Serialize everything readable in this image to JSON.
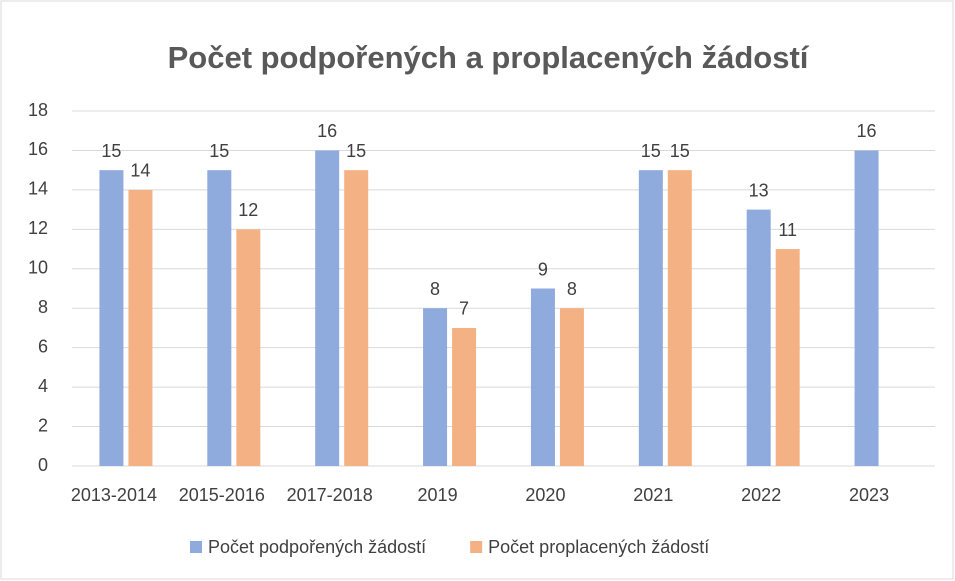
{
  "chart_data": {
    "type": "bar",
    "title": "Počet podpořených a proplacených žádostí",
    "categories": [
      "2013-2014",
      "2015-2016",
      "2017-2018",
      "2019",
      "2020",
      "2021",
      "2022",
      "2023"
    ],
    "series": [
      {
        "name": "Počet podpořených žádostí",
        "color": "#8faadc",
        "values": [
          15,
          15,
          16,
          8,
          9,
          15,
          13,
          16
        ]
      },
      {
        "name": "Počet proplacených žádostí",
        "color": "#f4b183",
        "values": [
          14,
          12,
          15,
          7,
          8,
          15,
          11,
          null
        ]
      }
    ],
    "ylim": [
      0,
      18
    ],
    "yticks": [
      0,
      2,
      4,
      6,
      8,
      10,
      12,
      14,
      16,
      18
    ],
    "grid": true,
    "legend": "bottom"
  }
}
